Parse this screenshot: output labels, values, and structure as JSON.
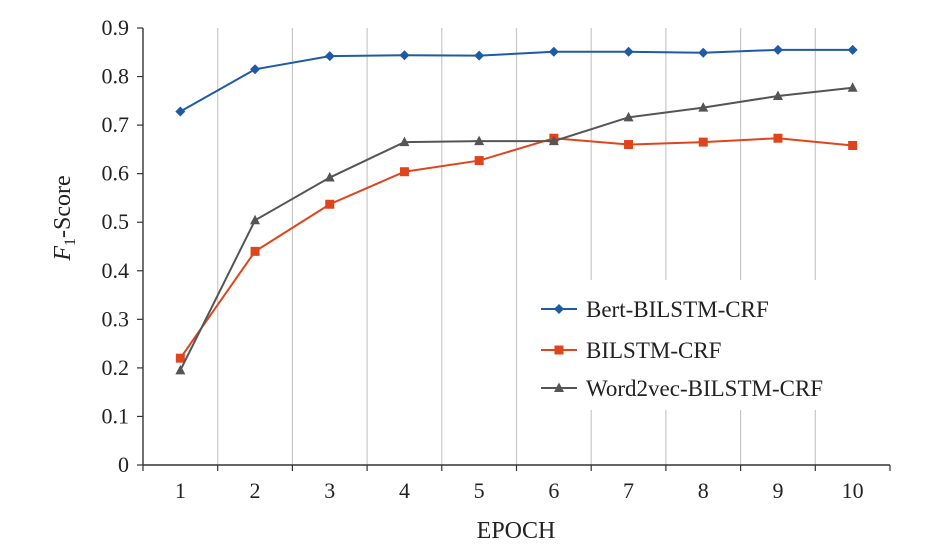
{
  "chart_data": {
    "type": "line",
    "x": [
      1,
      2,
      3,
      4,
      5,
      6,
      7,
      8,
      9,
      10
    ],
    "xlabel": "EPOCH",
    "ylabel": {
      "italic": "F",
      "subscript": "1",
      "rest": "-Score"
    },
    "ylim": [
      0,
      0.9
    ],
    "yticks": [
      "0",
      "0.1",
      "0.2",
      "0.3",
      "0.4",
      "0.5",
      "0.6",
      "0.7",
      "0.8",
      "0.9"
    ],
    "xticks": [
      "1",
      "2",
      "3",
      "4",
      "5",
      "6",
      "7",
      "8",
      "9",
      "10"
    ],
    "grid": "vertical",
    "legend": "center-right",
    "series": [
      {
        "name": "Bert-BILSTM-CRF",
        "color": "#1f5aa6",
        "marker": "diamond",
        "values": [
          0.728,
          0.815,
          0.842,
          0.844,
          0.843,
          0.851,
          0.851,
          0.849,
          0.855,
          0.855
        ]
      },
      {
        "name": "BILSTM-CRF",
        "color": "#e0441c",
        "marker": "square",
        "values": [
          0.22,
          0.44,
          0.537,
          0.604,
          0.627,
          0.673,
          0.66,
          0.665,
          0.673,
          0.658
        ]
      },
      {
        "name": "Word2vec-BILSTM-CRF",
        "color": "#555555",
        "marker": "triangle",
        "values": [
          0.195,
          0.504,
          0.592,
          0.665,
          0.667,
          0.667,
          0.716,
          0.736,
          0.76,
          0.777
        ]
      }
    ]
  }
}
